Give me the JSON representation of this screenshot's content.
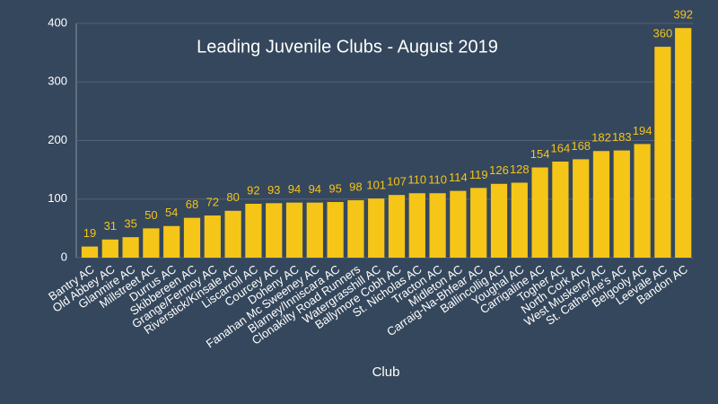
{
  "chart_data": {
    "type": "bar",
    "title": "Leading Juvenile Clubs - August 2019",
    "x_label": "Club",
    "categories": [
      "Bantry AC",
      "Old Abbey AC",
      "Glanmire AC",
      "Millstreet AC",
      "Durrus AC",
      "Skibbereen AC",
      "Grange/Fermoy AC",
      "Riverstick/Kinsale AC",
      "Liscarroll AC",
      "Courcey AC",
      "Doheny AC",
      "Fanahan Mc Sweeney AC",
      "Blarney/Inniscara AC",
      "Clonakilty Road Runners",
      "Watergrasshill AC",
      "Ballymore Cobh AC",
      "St. Nicholas AC",
      "Tracton AC",
      "Midleton AC",
      "Carraig-Na-Bhfear AC",
      "Ballincollig AC",
      "Youghal AC",
      "Carrigaline AC",
      "Togher AC",
      "North Cork AC",
      "West Muskerry AC",
      "St. Catherine's AC",
      "Belgooly AC",
      "Leevale AC",
      "Bandon AC"
    ],
    "values": [
      19,
      31,
      35,
      50,
      54,
      68,
      72,
      80,
      92,
      93,
      94,
      94,
      95,
      98,
      101,
      107,
      110,
      110,
      114,
      119,
      126,
      128,
      154,
      164,
      168,
      182,
      183,
      194,
      360,
      392
    ],
    "color": "#f5c518",
    "ylim": [
      0,
      400
    ],
    "yticks": [
      0,
      100,
      200,
      300,
      400
    ],
    "grid": true
  }
}
